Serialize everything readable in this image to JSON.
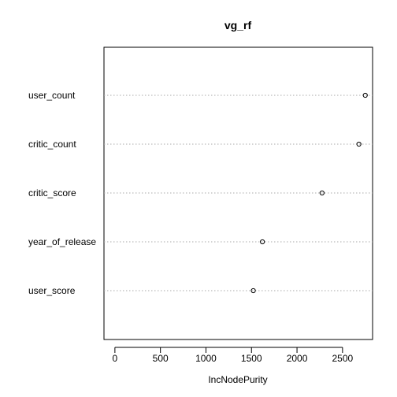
{
  "chart_data": {
    "type": "scatter",
    "title": "vg_rf",
    "xlabel": "IncNodePurity",
    "ylabel": "",
    "xlim": [
      -120,
      2830
    ],
    "x_ticks": [
      0,
      500,
      1000,
      1500,
      2000,
      2500
    ],
    "x_tick_labels": [
      "0",
      "500",
      "1000",
      "1500",
      "2000",
      "2500"
    ],
    "grid": "horizontal dotted lines per variable",
    "categories": [
      "user_count",
      "critic_count",
      "critic_score",
      "year_of_release",
      "user_score"
    ],
    "values": [
      2750,
      2680,
      2275,
      1620,
      1520
    ]
  }
}
